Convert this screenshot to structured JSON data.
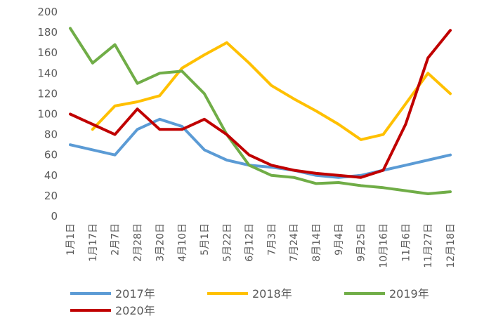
{
  "chart_data": {
    "type": "line",
    "categories": [
      "1月1日",
      "1月17日",
      "2月7日",
      "2月28日",
      "3月20日",
      "4月10日",
      "5月1日",
      "5月22日",
      "6月12日",
      "7月3日",
      "7月24日",
      "8月14日",
      "9月4日",
      "9月25日",
      "10月16日",
      "11月6日",
      "11月27日",
      "12月18日"
    ],
    "ylim": [
      0,
      200
    ],
    "yticks": [
      0,
      20,
      40,
      60,
      80,
      100,
      120,
      140,
      160,
      180,
      200
    ],
    "grid": false,
    "series": [
      {
        "name": "2017年",
        "color": "#5b9bd5",
        "values": [
          70,
          65,
          60,
          85,
          95,
          88,
          65,
          55,
          50,
          48,
          45,
          40,
          38,
          40,
          45,
          50,
          55,
          60
        ]
      },
      {
        "name": "2018年",
        "color": "#ffc000",
        "values": [
          null,
          85,
          108,
          112,
          118,
          145,
          158,
          170,
          150,
          128,
          115,
          103,
          90,
          75,
          80,
          110,
          140,
          120
        ]
      },
      {
        "name": "2019年",
        "color": "#70ad47",
        "values": [
          184,
          150,
          168,
          130,
          140,
          142,
          120,
          80,
          50,
          40,
          38,
          32,
          33,
          30,
          28,
          25,
          22,
          24
        ]
      },
      {
        "name": "2020年",
        "color": "#c00000",
        "values": [
          100,
          90,
          80,
          105,
          85,
          85,
          95,
          80,
          60,
          50,
          45,
          42,
          40,
          38,
          45,
          90,
          155,
          182
        ]
      }
    ],
    "legend": "bottom"
  }
}
